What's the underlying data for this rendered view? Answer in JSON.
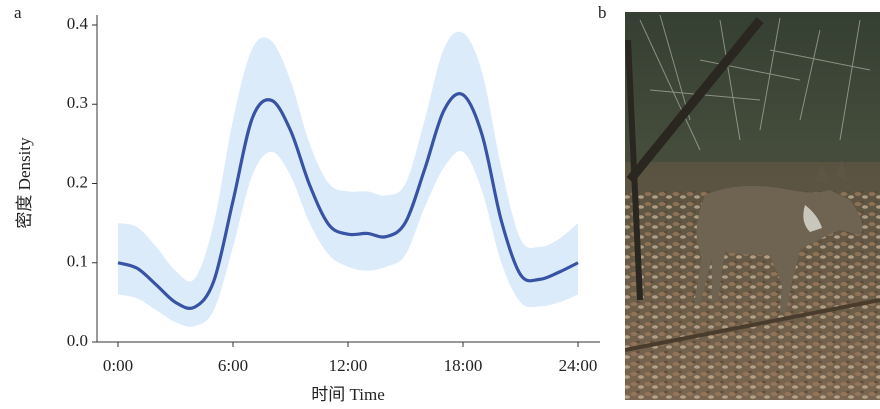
{
  "chart_data": {
    "type": "line",
    "panel_label": "a",
    "ylabel": "密度 Density",
    "xlabel": "时间 Time",
    "x": [
      0,
      1,
      2,
      3,
      4,
      5,
      6,
      7,
      8,
      9,
      10,
      11,
      12,
      13,
      14,
      15,
      16,
      17,
      18,
      19,
      20,
      21,
      22,
      23,
      24
    ],
    "values": [
      0.1,
      0.093,
      0.072,
      0.05,
      0.044,
      0.077,
      0.178,
      0.282,
      0.305,
      0.267,
      0.198,
      0.148,
      0.136,
      0.137,
      0.133,
      0.151,
      0.218,
      0.292,
      0.312,
      0.261,
      0.153,
      0.085,
      0.079,
      0.088,
      0.1
    ],
    "upper": [
      0.15,
      0.145,
      0.12,
      0.09,
      0.08,
      0.15,
      0.28,
      0.37,
      0.38,
      0.33,
      0.25,
      0.2,
      0.19,
      0.19,
      0.185,
      0.2,
      0.28,
      0.37,
      0.39,
      0.34,
      0.22,
      0.13,
      0.12,
      0.13,
      0.15
    ],
    "lower": [
      0.06,
      0.055,
      0.04,
      0.025,
      0.02,
      0.04,
      0.12,
      0.21,
      0.24,
      0.21,
      0.15,
      0.11,
      0.095,
      0.09,
      0.095,
      0.11,
      0.17,
      0.22,
      0.24,
      0.19,
      0.1,
      0.05,
      0.045,
      0.05,
      0.06
    ],
    "color": "#3853a4",
    "band_color": "#dcebfa",
    "xlim": [
      0,
      24
    ],
    "xticks": [
      {
        "value": 0,
        "label": "0:00"
      },
      {
        "value": 6,
        "label": "6:00"
      },
      {
        "value": 12,
        "label": "12:00"
      },
      {
        "value": 18,
        "label": "18:00"
      },
      {
        "value": 24,
        "label": "24:00"
      }
    ],
    "ylim": [
      0,
      0.4
    ],
    "yticks": [
      {
        "value": 0,
        "label": "0.0"
      },
      0.1,
      0.2,
      0.3,
      0.4
    ]
  },
  "photo": {
    "label": "b"
  }
}
